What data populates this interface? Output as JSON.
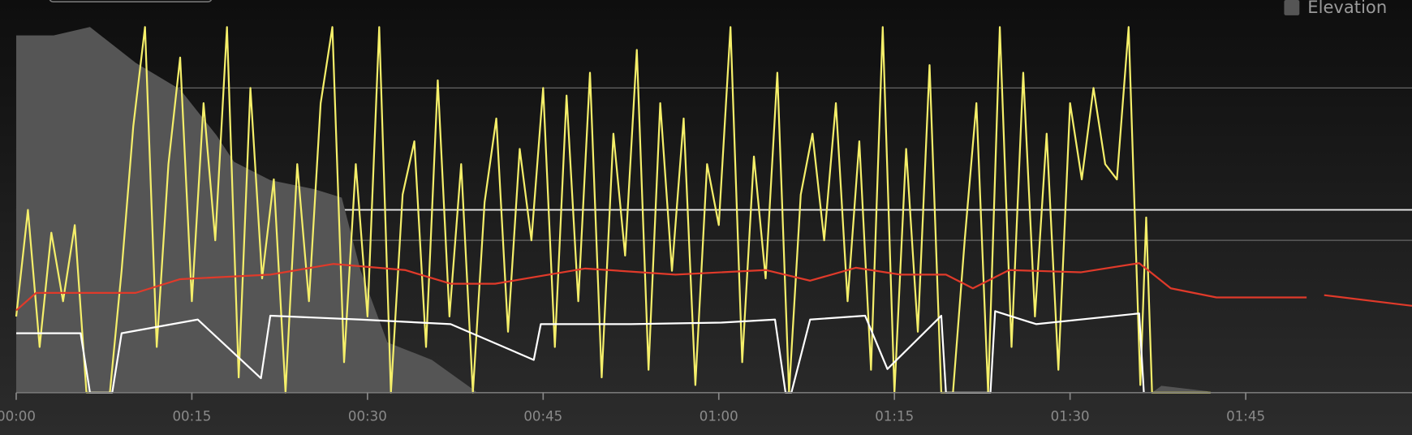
{
  "chart_data": {
    "type": "line",
    "legend": "top-right",
    "grid": true,
    "threshold": 240,
    "xlim": [
      0,
      119.2
    ],
    "xticks": [
      {
        "value": 0,
        "label": "00:00"
      },
      {
        "value": 15,
        "label": "00:15"
      },
      {
        "value": 30,
        "label": "00:30"
      },
      {
        "value": 45,
        "label": "00:45"
      },
      {
        "value": 60,
        "label": "01:00"
      },
      {
        "value": 75,
        "label": "01:15"
      },
      {
        "value": 90,
        "label": "01:30"
      },
      {
        "value": 105,
        "label": "01:45"
      }
    ],
    "ylim": [
      0,
      480
    ],
    "yticks": [
      0,
      200,
      400
    ],
    "series": [
      {
        "name": "Elevation",
        "type": "area",
        "color": "#555555",
        "x": [
          0,
          3.2,
          6.3,
          10.2,
          14,
          17.1,
          18.6,
          21.7,
          25.5,
          27.8,
          29.4,
          31.7,
          35.5,
          39.4,
          97,
          97.8,
          101.7,
          102.1
        ],
        "values": [
          469,
          469,
          480,
          433,
          398,
          338,
          303,
          279,
          267,
          256,
          161,
          66,
          43,
          0,
          0,
          9,
          2,
          0
        ]
      },
      {
        "type": "line",
        "color": "#f5ef6a",
        "x": [
          0,
          1,
          2,
          3,
          4,
          5,
          6,
          7,
          8,
          9,
          10,
          11,
          12,
          13,
          14,
          15,
          16,
          17,
          18,
          19,
          20,
          21,
          22,
          23,
          24,
          25,
          26,
          27,
          28,
          29,
          30,
          31,
          32,
          33,
          34,
          35,
          36,
          37,
          38,
          39,
          40,
          41,
          42,
          43,
          44,
          45,
          46,
          47,
          48,
          49,
          50,
          51,
          52,
          53,
          54,
          55,
          56,
          57,
          58,
          59,
          60,
          61,
          62,
          63,
          64,
          65,
          66,
          67,
          68,
          69,
          70,
          71,
          72,
          73,
          74,
          75,
          76,
          77,
          78,
          79,
          80,
          81,
          82,
          83,
          84,
          85,
          86,
          87,
          88,
          89,
          90,
          91,
          92,
          93,
          94,
          95,
          96,
          96.5,
          97,
          100,
          102
        ],
        "values": [
          100,
          240,
          60,
          210,
          120,
          220,
          0,
          0,
          0,
          160,
          350,
          480,
          60,
          300,
          440,
          120,
          380,
          200,
          480,
          20,
          400,
          150,
          280,
          0,
          300,
          120,
          380,
          480,
          40,
          300,
          100,
          480,
          0,
          260,
          330,
          60,
          410,
          100,
          300,
          0,
          250,
          360,
          80,
          320,
          200,
          400,
          60,
          390,
          120,
          420,
          20,
          340,
          180,
          450,
          30,
          380,
          160,
          360,
          10,
          300,
          220,
          480,
          40,
          310,
          150,
          420,
          0,
          260,
          340,
          200,
          380,
          120,
          330,
          30,
          480,
          0,
          320,
          80,
          430,
          0,
          0,
          200,
          380,
          0,
          480,
          60,
          420,
          100,
          340,
          30,
          380,
          280,
          400,
          300,
          280,
          480,
          10,
          230,
          0,
          0,
          0
        ]
      },
      {
        "type": "line",
        "color": "#e03a2a",
        "x": [
          0,
          1.7,
          10.2,
          14,
          21.7,
          27.1,
          33.2,
          37.1,
          40.9,
          48.6,
          56.3,
          64,
          67.8,
          71.7,
          75.5,
          79.4,
          81.7,
          84.8,
          90.9,
          95.9,
          98.6,
          102.5,
          110.2,
          111,
          111.7,
          119.2
        ],
        "values": [
          108,
          131,
          131,
          149,
          155,
          169,
          161,
          143,
          143,
          163,
          155,
          161,
          147,
          164,
          155,
          155,
          137,
          161,
          158,
          170,
          137,
          125,
          125,
          null,
          128,
          114
        ]
      },
      {
        "type": "line",
        "color": "#ffffff",
        "x": [
          0,
          2.5,
          5.5,
          6.3,
          8.2,
          9,
          15.5,
          20.9,
          21.7,
          29.4,
          37.1,
          44.2,
          44.8,
          52.5,
          60.2,
          64.8,
          65.7,
          66.2,
          67.8,
          72.5,
          74.4,
          79,
          79.4,
          83.2,
          83.6,
          87.1,
          95.9,
          96.3
        ],
        "values": [
          78,
          78,
          78,
          0,
          0,
          78,
          96,
          19,
          101,
          96,
          90,
          43,
          90,
          90,
          92,
          96,
          0,
          0,
          96,
          101,
          31,
          101,
          0,
          0,
          107,
          90,
          104,
          0
        ]
      }
    ]
  }
}
